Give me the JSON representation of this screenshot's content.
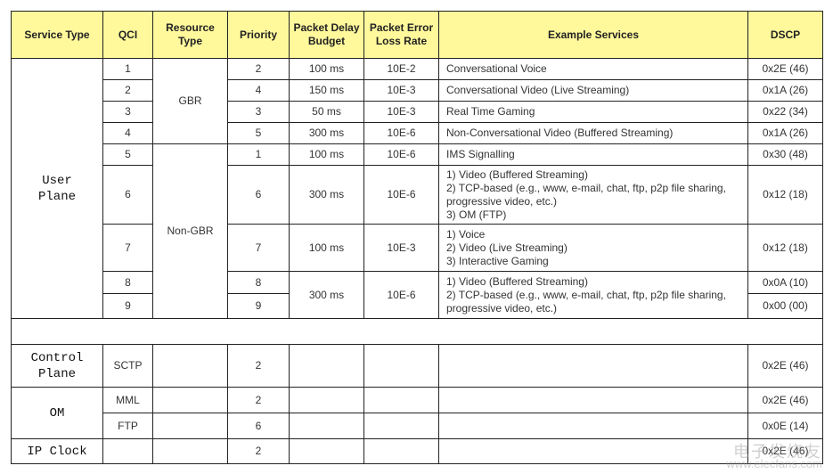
{
  "headers": [
    "Service Type",
    "QCI",
    "Resource Type",
    "Priority",
    "Packet Delay Budget",
    "Packet Error Loss Rate",
    "Example Services",
    "DSCP"
  ],
  "groups": {
    "user_plane": "User Plane",
    "gbr": "GBR",
    "non_gbr": "Non-GBR",
    "control_plane": "Control Plane",
    "om": "OM",
    "ip_clock": "IP Clock"
  },
  "rows": [
    {
      "qci": "1",
      "priority": "2",
      "delay": "100 ms",
      "loss": "10E-2",
      "examples": [
        "Conversational Voice"
      ],
      "dscp": "0x2E (46)"
    },
    {
      "qci": "2",
      "priority": "4",
      "delay": "150 ms",
      "loss": "10E-3",
      "examples": [
        "Conversational Video (Live Streaming)"
      ],
      "dscp": "0x1A (26)"
    },
    {
      "qci": "3",
      "priority": "3",
      "delay": "50 ms",
      "loss": "10E-3",
      "examples": [
        "Real Time Gaming"
      ],
      "dscp": "0x22 (34)"
    },
    {
      "qci": "4",
      "priority": "5",
      "delay": "300 ms",
      "loss": "10E-6",
      "examples": [
        "Non-Conversational Video (Buffered Streaming)"
      ],
      "dscp": "0x1A (26)"
    },
    {
      "qci": "5",
      "priority": "1",
      "delay": "100 ms",
      "loss": "10E-6",
      "examples": [
        "IMS Signalling"
      ],
      "dscp": "0x30 (48)"
    },
    {
      "qci": "6",
      "priority": "6",
      "delay": "300 ms",
      "loss": "10E-6",
      "examples": [
        "1) Video (Buffered Streaming)",
        "2) TCP-based (e.g., www, e-mail, chat, ftp, p2p file sharing, progressive video, etc.)",
        "3) OM (FTP)"
      ],
      "dscp": "0x12 (18)"
    },
    {
      "qci": "7",
      "priority": "7",
      "delay": "100 ms",
      "loss": "10E-3",
      "examples": [
        "1) Voice",
        "2) Video (Live Streaming)",
        "3) Interactive Gaming"
      ],
      "dscp": "0x12 (18)"
    },
    {
      "qci": "8",
      "priority": "8",
      "delay": "300 ms",
      "loss": "10E-6",
      "examples": [
        "1) Video (Buffered Streaming)",
        "2) TCP-based (e.g., www, e-mail, chat, ftp, p2p file sharing, progressive video, etc.)"
      ],
      "dscp": "0x0A (10)"
    },
    {
      "qci": "9",
      "priority": "9",
      "dscp": "0x00 (00)"
    },
    {
      "qci": "SCTP",
      "priority": "2",
      "dscp": "0x2E (46)"
    },
    {
      "qci": "MML",
      "priority": "2",
      "dscp": "0x2E (46)"
    },
    {
      "qci": "FTP",
      "priority": "6",
      "dscp": "0x0E (14)"
    },
    {
      "qci": "",
      "priority": "2",
      "dscp": "0x2E (46)"
    }
  ],
  "colors": {
    "header_bg": "#fff99c",
    "border": "#222222"
  },
  "watermark": {
    "text": "电子发烧友",
    "url": "www.elecfans.com"
  }
}
